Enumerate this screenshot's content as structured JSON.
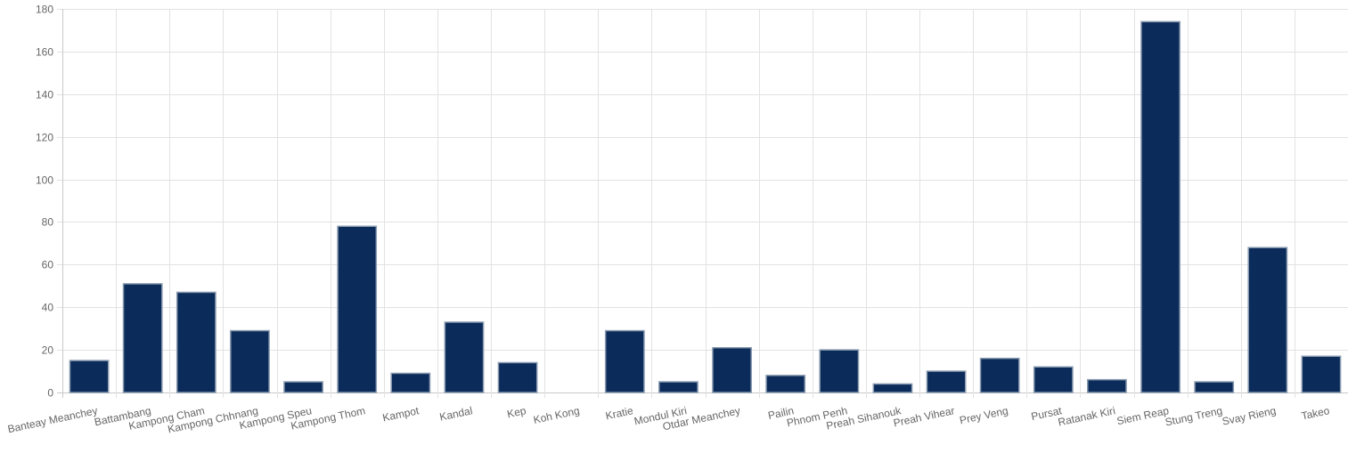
{
  "chart_data": {
    "type": "bar",
    "title": "",
    "xlabel": "",
    "ylabel": "",
    "ylim": [
      0,
      180
    ],
    "yticks": [
      0,
      20,
      40,
      60,
      80,
      100,
      120,
      140,
      160,
      180
    ],
    "grid": true,
    "legend": "none",
    "categories": [
      "Banteay Meanchey",
      "Battambang",
      "Kampong Cham",
      "Kampong Chhnang",
      "Kampong Speu",
      "Kampong Thom",
      "Kampot",
      "Kandal",
      "Kep",
      "Koh Kong",
      "Kratie",
      "Mondul Kiri",
      "Otdar Meanchey",
      "Pailin",
      "Phnom Penh",
      "Preah Sihanouk",
      "Preah Vihear",
      "Prey Veng",
      "Pursat",
      "Ratanak Kiri",
      "Siem Reap",
      "Stung Treng",
      "Svay Rieng",
      "Takeo"
    ],
    "series": [
      {
        "values": [
          15,
          51,
          47,
          29,
          5,
          78,
          9,
          33,
          14,
          0,
          29,
          5,
          21,
          8,
          20,
          4,
          10,
          16,
          12,
          6,
          174,
          5,
          68,
          17
        ]
      }
    ],
    "colors": {
      "bar_fill": "#0b2b5a",
      "bar_stroke": "#8a9bb0",
      "grid": "#e2e2e2",
      "axis": "#c8c8c8",
      "tick_text": "#666666"
    }
  }
}
